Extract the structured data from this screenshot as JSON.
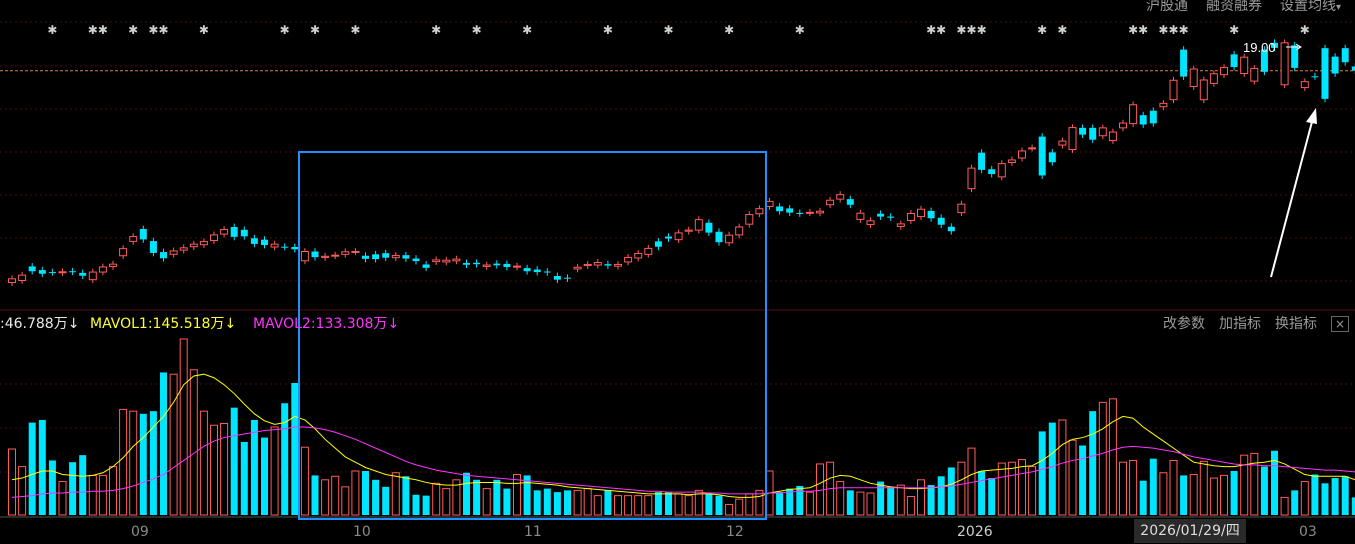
{
  "top_menu": {
    "hk_connect": "沪股通",
    "margin": "融资融券",
    "ma_settings": "设置均线"
  },
  "dropdown_glyph": "▾",
  "marker_glyph": "✱",
  "price_label": "19.00",
  "indicator": {
    "vol_fragment": ":46.788万",
    "vol_arrow": "↓",
    "mavol1": "MAVOL1:145.518万",
    "mavol1_arrow": "↓",
    "mavol2": "MAVOL2:133.308万",
    "mavol2_arrow": "↓",
    "change_params": "改参数",
    "add_indicator": "加指标",
    "switch_indicator": "换指标",
    "close_glyph": "×"
  },
  "x_axis": {
    "labels": [
      "09",
      "10",
      "11",
      "12",
      "2026",
      "03"
    ],
    "crosshair_date": "2026/01/29/四"
  },
  "colors": {
    "up": "#ff5b5b",
    "down": "#00e5ff",
    "ma1": "#ffff00",
    "ma2": "#ff33ff",
    "box": "#1e90ff",
    "arrow": "#ffffff",
    "grid": "#4a0a0a"
  },
  "chart_data": [
    {
      "type": "candlestick",
      "title": "",
      "x": [
        1,
        2,
        3,
        4,
        5,
        6,
        7,
        8,
        9,
        10,
        11,
        12,
        13,
        14,
        15,
        16,
        17,
        18,
        19,
        20,
        21,
        22,
        23,
        24,
        25,
        26,
        27,
        28,
        29,
        30,
        31,
        32,
        33,
        34,
        35,
        36,
        37,
        38,
        39,
        40,
        41,
        42,
        43,
        44,
        45,
        46,
        47,
        48,
        49,
        50,
        51,
        52,
        53,
        54,
        55,
        56,
        57,
        58,
        59,
        60,
        61,
        62,
        63,
        64,
        65,
        66,
        67,
        68,
        69,
        70,
        71,
        72,
        73,
        74,
        75,
        76,
        77,
        78,
        79,
        80,
        81,
        82,
        83,
        84,
        85,
        86,
        87,
        88,
        89,
        90,
        91,
        92,
        93,
        94,
        95,
        96,
        97,
        98,
        99,
        100,
        101,
        102,
        103,
        104,
        105,
        106,
        107,
        108,
        109,
        110,
        111,
        112,
        113,
        114,
        115,
        116,
        117,
        118,
        119,
        120,
        121,
        122,
        123,
        124,
        125,
        126,
        127,
        128,
        129,
        130,
        131,
        132,
        133,
        134
      ],
      "up": [
        true,
        true,
        false,
        false,
        false,
        true,
        false,
        false,
        true,
        true,
        true,
        true,
        true,
        false,
        false,
        false,
        true,
        true,
        true,
        true,
        true,
        true,
        false,
        false,
        false,
        false,
        true,
        false,
        false,
        true,
        false,
        true,
        true,
        true,
        true,
        false,
        false,
        false,
        true,
        false,
        false,
        false,
        true,
        true,
        true,
        false,
        false,
        true,
        false,
        false,
        true,
        false,
        false,
        false,
        false,
        false,
        true,
        true,
        true,
        false,
        true,
        true,
        true,
        true,
        false,
        false,
        true,
        true,
        true,
        false,
        false,
        true,
        true,
        true,
        true,
        true,
        false,
        false,
        false,
        true,
        true,
        true,
        true,
        false,
        true,
        true,
        false,
        false,
        true,
        true,
        true,
        false,
        false,
        false,
        true,
        true,
        false,
        false,
        true,
        true,
        true,
        true,
        false,
        false,
        true,
        true,
        false,
        false,
        true,
        true,
        true,
        true,
        false,
        false,
        true,
        true,
        false,
        true,
        true,
        true,
        true,
        false,
        true,
        true,
        false,
        false,
        true,
        false,
        true,
        false,
        false,
        false,
        false,
        false
      ],
      "open": [
        10.48,
        10.55,
        11.05,
        10.92,
        10.85,
        10.84,
        10.88,
        10.82,
        10.58,
        10.85,
        11.05,
        11.43,
        11.94,
        12.38,
        11.95,
        11.56,
        11.48,
        11.63,
        11.75,
        11.82,
        11.97,
        12.2,
        12.45,
        12.35,
        12.05,
        12.0,
        11.74,
        11.75,
        11.74,
        11.25,
        11.58,
        11.37,
        11.43,
        11.48,
        11.57,
        11.43,
        11.48,
        11.52,
        11.36,
        11.45,
        11.33,
        11.12,
        11.22,
        11.21,
        11.25,
        11.17,
        11.18,
        11.05,
        11.15,
        11.14,
        11.03,
        10.99,
        10.94,
        10.87,
        10.71,
        10.65,
        10.96,
        11.08,
        11.1,
        11.13,
        11.06,
        11.21,
        11.35,
        11.48,
        11.75,
        12.11,
        12.0,
        12.3,
        12.34,
        12.6,
        12.28,
        11.89,
        12.17,
        12.55,
        12.92,
        13.18,
        13.18,
        13.11,
        12.95,
        12.97,
        12.95,
        13.24,
        13.44,
        13.44,
        12.94,
        12.67,
        12.82,
        12.78,
        12.56,
        12.93,
        13.08,
        13.02,
        12.78,
        12.46,
        12.96,
        13.81,
        14.48,
        14.33,
        14.7,
        14.83,
        15.15,
        15.25,
        14.28,
        15.1,
        15.5,
        15.2,
        15.73,
        15.97,
        15.69,
        15.52,
        15.97,
        16.12,
        16.09,
        16.58,
        16.72,
        17.66,
        18.75,
        17.44,
        17.67,
        17.89,
        18.11,
        18.58,
        17.9,
        18.08,
        18.75,
        18.99,
        17.5,
        18.1,
        17.4,
        17.8,
        18.8,
        18.5,
        18.3,
        18.15
      ],
      "close": [
        10.61,
        10.74,
        10.88,
        10.79,
        10.84,
        10.86,
        10.86,
        10.72,
        10.85,
        11.03,
        11.13,
        11.68,
        12.11,
        12.01,
        11.53,
        11.34,
        11.6,
        11.71,
        11.84,
        11.93,
        12.17,
        12.36,
        12.1,
        12.12,
        11.85,
        11.81,
        11.84,
        11.74,
        11.66,
        11.58,
        11.38,
        11.41,
        11.45,
        11.57,
        11.58,
        11.32,
        11.31,
        11.36,
        11.44,
        11.33,
        11.24,
        11.0,
        11.28,
        11.27,
        11.31,
        11.11,
        11.13,
        11.1,
        11.09,
        11.03,
        11.06,
        10.88,
        10.85,
        10.84,
        10.58,
        10.62,
        11.02,
        11.12,
        11.19,
        11.08,
        11.12,
        11.37,
        11.51,
        11.69,
        11.94,
        12.04,
        12.24,
        12.34,
        12.71,
        12.25,
        11.91,
        12.16,
        12.45,
        12.89,
        13.1,
        13.36,
        13.01,
        12.96,
        12.93,
        12.96,
        13.01,
        13.4,
        13.6,
        13.24,
        12.72,
        12.54,
        12.92,
        12.82,
        12.47,
        12.68,
        12.82,
        12.76,
        12.53,
        12.3,
        13.26,
        14.54,
        15.09,
        14.5,
        14.23,
        14.74,
        14.9,
        15.26,
        15.66,
        14.75,
        15.36,
        15.98,
        15.97,
        15.55,
        15.97,
        15.82,
        16.14,
        16.79,
        16.42,
        16.13,
        16.84,
        16.97,
        17.79,
        18.06,
        16.97,
        17.55,
        17.86,
        18.13,
        18.48,
        17.63,
        17.96,
        18.81,
        18.99,
        18.9,
        17.61,
        17.8,
        17.0,
        17.9,
        18.8,
        18.0
      ]
    },
    {
      "type": "bar",
      "title": "",
      "x": [
        1,
        2,
        3,
        4,
        5,
        6,
        7,
        8,
        9,
        10,
        11,
        12,
        13,
        14,
        15,
        16,
        17,
        18,
        19,
        20,
        21,
        22,
        23,
        24,
        25,
        26,
        27,
        28,
        29,
        30,
        31,
        32,
        33,
        34,
        35,
        36,
        37,
        38,
        39,
        40,
        41,
        42,
        43,
        44,
        45,
        46,
        47,
        48,
        49,
        50,
        51,
        52,
        53,
        54,
        55,
        56,
        57,
        58,
        59,
        60,
        61,
        62,
        63,
        64,
        65,
        66,
        67,
        68,
        69,
        70,
        71,
        72,
        73,
        74,
        75,
        76,
        77,
        78,
        79,
        80,
        81,
        82,
        83,
        84,
        85,
        86,
        87,
        88,
        89,
        90,
        91,
        92,
        93,
        94,
        95,
        96,
        97,
        98,
        99,
        100,
        101,
        102,
        103,
        104,
        105,
        106,
        107,
        108,
        109,
        110,
        111,
        112,
        113,
        114,
        115,
        116,
        117,
        118,
        119,
        120,
        121,
        122,
        123,
        124,
        125,
        126,
        127,
        128,
        129,
        130,
        131,
        132,
        133,
        134
      ],
      "values": [
        75,
        55,
        105,
        108,
        62,
        38,
        60,
        68,
        45,
        45,
        55,
        120,
        118,
        115,
        118,
        162,
        160,
        200,
        165,
        118,
        102,
        104,
        122,
        83,
        108,
        88,
        100,
        127,
        150,
        77,
        45,
        40,
        44,
        32,
        50,
        50,
        40,
        32,
        48,
        44,
        23,
        22,
        36,
        30,
        40,
        48,
        40,
        30,
        40,
        30,
        46,
        45,
        28,
        30,
        26,
        28,
        28,
        30,
        22,
        28,
        22,
        22,
        22,
        22,
        26,
        26,
        24,
        22,
        28,
        24,
        22,
        12,
        18,
        24,
        28,
        50,
        26,
        30,
        33,
        26,
        58,
        60,
        38,
        28,
        26,
        25,
        38,
        32,
        34,
        21,
        40,
        34,
        44,
        54,
        60,
        76,
        50,
        42,
        59,
        60,
        63,
        55,
        95,
        105,
        108,
        85,
        79,
        118,
        128,
        132,
        60,
        62,
        39,
        64,
        48,
        62,
        45,
        46,
        61,
        42,
        45,
        50,
        68,
        70,
        55,
        73,
        20,
        28,
        38,
        46,
        36,
        42,
        44,
        20
      ],
      "mavol1": [
        40,
        42,
        46,
        50,
        50,
        46,
        45,
        44,
        45,
        48,
        55,
        65,
        78,
        88,
        100,
        112,
        128,
        148,
        158,
        160,
        156,
        148,
        138,
        126,
        115,
        107,
        103,
        105,
        112,
        108,
        98,
        86,
        76,
        66,
        60,
        54,
        50,
        46,
        44,
        42,
        40,
        37,
        35,
        34,
        34,
        36,
        37,
        37,
        37,
        36,
        36,
        37,
        36,
        35,
        34,
        32,
        31,
        30,
        29,
        28,
        27,
        26,
        25,
        24,
        24,
        24,
        24,
        23,
        24,
        24,
        23,
        21,
        20,
        20,
        21,
        25,
        27,
        29,
        30,
        31,
        36,
        42,
        45,
        44,
        40,
        36,
        34,
        32,
        31,
        30,
        30,
        31,
        32,
        35,
        40,
        46,
        50,
        51,
        52,
        53,
        55,
        56,
        62,
        70,
        80,
        86,
        88,
        92,
        98,
        106,
        112,
        110,
        100,
        92,
        84,
        76,
        68,
        60,
        58,
        56,
        55,
        55,
        57,
        59,
        60,
        62,
        58,
        52,
        46,
        44,
        44,
        44,
        44,
        40
      ],
      "mavol2": [
        20,
        21,
        22,
        24,
        25,
        25,
        26,
        26,
        27,
        27,
        28,
        30,
        33,
        37,
        41,
        46,
        54,
        62,
        70,
        78,
        84,
        88,
        90,
        92,
        94,
        96,
        97,
        98,
        100,
        100,
        99,
        97,
        94,
        90,
        86,
        81,
        76,
        71,
        66,
        61,
        57,
        54,
        51,
        49,
        47,
        45,
        44,
        43,
        42,
        41,
        40,
        39,
        38,
        37,
        36,
        35,
        34,
        33,
        32,
        31,
        30,
        29,
        28,
        27,
        27,
        26,
        26,
        26,
        26,
        25,
        25,
        24,
        24,
        24,
        24,
        25,
        25,
        26,
        27,
        27,
        28,
        30,
        31,
        31,
        31,
        31,
        31,
        31,
        31,
        31,
        31,
        31,
        32,
        33,
        35,
        37,
        39,
        41,
        43,
        45,
        47,
        49,
        52,
        55,
        59,
        62,
        64,
        67,
        70,
        74,
        77,
        78,
        77,
        76,
        74,
        72,
        69,
        66,
        64,
        62,
        60,
        58,
        57,
        57,
        56,
        56,
        55,
        54,
        53,
        52,
        51,
        51,
        50,
        49
      ]
    }
  ]
}
